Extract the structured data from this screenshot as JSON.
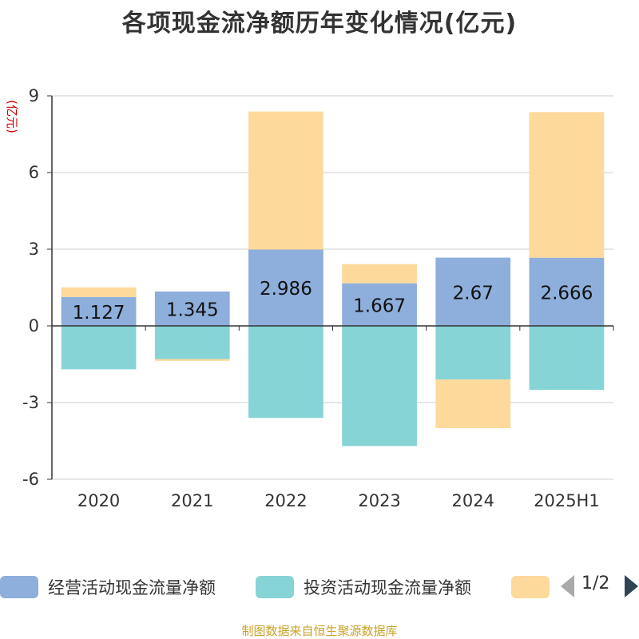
{
  "chart_data": {
    "type": "bar",
    "stacked": true,
    "title": "各项现金流净额历年变化情况(亿元)",
    "ylabel": "(亿元)",
    "categories": [
      "2020",
      "2021",
      "2022",
      "2023",
      "2024",
      "2025H1"
    ],
    "ylim": [
      -6,
      9
    ],
    "yticks": [
      -6,
      -3,
      0,
      3,
      6,
      9
    ],
    "grid": true,
    "series": [
      {
        "name": "经营活动现金流量净额",
        "color": "#8eaedb",
        "values": [
          1.127,
          1.345,
          2.986,
          1.667,
          2.67,
          2.666
        ],
        "data_labels": [
          "1.127",
          "1.345",
          "2.986",
          "1.667",
          "2.67",
          "2.666"
        ]
      },
      {
        "name": "投资活动现金流量净额",
        "color": "#86d4d6",
        "values": [
          -1.7,
          -1.3,
          -3.6,
          -4.7,
          -2.1,
          -2.5
        ]
      },
      {
        "name": "",
        "color": "#fdd99b",
        "values": [
          0.38,
          -0.07,
          5.4,
          0.75,
          -1.9,
          5.7
        ]
      }
    ]
  },
  "legend": {
    "items": [
      "经营活动现金流量净额",
      "投资活动现金流量净额",
      ""
    ],
    "colors": [
      "#8eaedb",
      "#86d4d6",
      "#fdd99b"
    ],
    "page_indicator": "1/2"
  },
  "source_text": "制图数据来自恒生聚源数据库"
}
